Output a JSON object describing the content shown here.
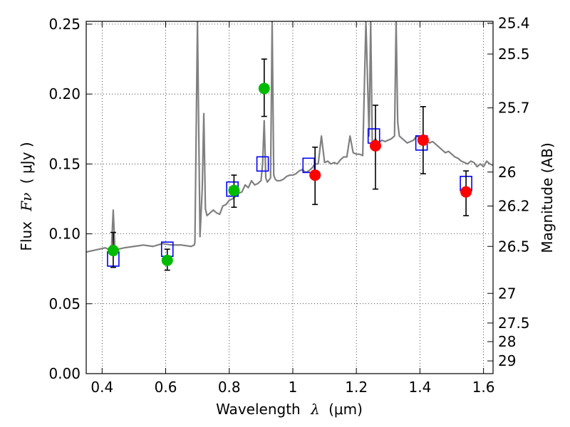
{
  "chart_data": {
    "type": "scatter",
    "title": "",
    "xlabel": "Wavelength",
    "xlabel_symbol": "λ",
    "xlabel_unit": "(μm)",
    "ylabel": "Flux",
    "ylabel_symbol": "Fν",
    "ylabel_unit": "( μJy )",
    "right_ylabel": "Magnitude (AB)",
    "xlim": [
      0.35,
      1.63
    ],
    "ylim": [
      0.0,
      0.252
    ],
    "grid": true,
    "x_ticks": [
      0.4,
      0.6,
      0.8,
      1.0,
      1.2,
      1.4,
      1.6
    ],
    "x_tick_labels": [
      "0.4",
      "0.6",
      "0.8",
      "1",
      "1.2",
      "1.4",
      "1.6"
    ],
    "y_ticks": [
      0.0,
      0.05,
      0.1,
      0.15,
      0.2,
      0.25
    ],
    "y_tick_labels": [
      "0.00",
      "0.05",
      "0.10",
      "0.15",
      "0.20",
      "0.25"
    ],
    "right_ticks": [
      {
        "label": "25.4",
        "flux": 0.2507
      },
      {
        "label": "25.5",
        "flux": 0.2286
      },
      {
        "label": "25.7",
        "flux": 0.1901
      },
      {
        "label": "26",
        "flux": 0.1442
      },
      {
        "label": "26.2",
        "flux": 0.1199
      },
      {
        "label": "26.5",
        "flux": 0.091
      },
      {
        "label": "27",
        "flux": 0.0574
      },
      {
        "label": "27.5",
        "flux": 0.0362
      },
      {
        "label": "28",
        "flux": 0.0229
      },
      {
        "label": "29",
        "flux": 0.0091
      }
    ],
    "series": [
      {
        "name": "model spectrum",
        "kind": "line",
        "color": "#808080",
        "x": [
          0.35,
          0.37,
          0.39,
          0.41,
          0.42,
          0.43,
          0.435,
          0.44,
          0.45,
          0.47,
          0.5,
          0.53,
          0.56,
          0.59,
          0.62,
          0.65,
          0.68,
          0.69,
          0.692,
          0.7,
          0.708,
          0.715,
          0.72,
          0.725,
          0.73,
          0.74,
          0.75,
          0.76,
          0.77,
          0.78,
          0.79,
          0.8,
          0.81,
          0.82,
          0.83,
          0.84,
          0.85,
          0.86,
          0.87,
          0.88,
          0.89,
          0.9,
          0.905,
          0.91,
          0.915,
          0.92,
          0.93,
          0.935,
          0.94,
          0.945,
          0.95,
          0.96,
          0.97,
          0.98,
          0.99,
          1.0,
          1.01,
          1.02,
          1.03,
          1.04,
          1.05,
          1.06,
          1.07,
          1.08,
          1.09,
          1.1,
          1.11,
          1.12,
          1.13,
          1.14,
          1.15,
          1.16,
          1.17,
          1.18,
          1.19,
          1.2,
          1.21,
          1.22,
          1.23,
          1.24,
          1.245,
          1.25,
          1.26,
          1.27,
          1.28,
          1.29,
          1.3,
          1.31,
          1.32,
          1.325,
          1.33,
          1.335,
          1.34,
          1.35,
          1.36,
          1.37,
          1.38,
          1.39,
          1.4,
          1.41,
          1.42,
          1.43,
          1.44,
          1.45,
          1.46,
          1.47,
          1.48,
          1.49,
          1.5,
          1.51,
          1.52,
          1.53,
          1.54,
          1.55,
          1.56,
          1.57,
          1.58,
          1.59,
          1.6,
          1.61,
          1.62,
          1.63
        ],
        "y": [
          0.087,
          0.088,
          0.089,
          0.09,
          0.089,
          0.092,
          0.117,
          0.091,
          0.089,
          0.09,
          0.091,
          0.092,
          0.091,
          0.093,
          0.092,
          0.092,
          0.091,
          0.092,
          0.094,
          0.252,
          0.098,
          0.132,
          0.186,
          0.118,
          0.113,
          0.115,
          0.117,
          0.115,
          0.114,
          0.12,
          0.121,
          0.124,
          0.125,
          0.127,
          0.129,
          0.13,
          0.135,
          0.133,
          0.138,
          0.135,
          0.136,
          0.138,
          0.15,
          0.181,
          0.14,
          0.137,
          0.14,
          0.252,
          0.142,
          0.139,
          0.138,
          0.138,
          0.139,
          0.141,
          0.142,
          0.142,
          0.143,
          0.145,
          0.146,
          0.144,
          0.145,
          0.147,
          0.15,
          0.15,
          0.17,
          0.151,
          0.152,
          0.15,
          0.151,
          0.15,
          0.153,
          0.155,
          0.155,
          0.17,
          0.158,
          0.157,
          0.157,
          0.156,
          0.252,
          0.17,
          0.252,
          0.165,
          0.168,
          0.165,
          0.167,
          0.166,
          0.167,
          0.168,
          0.17,
          0.252,
          0.18,
          0.17,
          0.169,
          0.167,
          0.165,
          0.166,
          0.167,
          0.17,
          0.168,
          0.169,
          0.167,
          0.165,
          0.166,
          0.164,
          0.162,
          0.16,
          0.158,
          0.159,
          0.157,
          0.155,
          0.154,
          0.152,
          0.151,
          0.15,
          0.152,
          0.151,
          0.148,
          0.15,
          0.148,
          0.152,
          0.15,
          0.149
        ]
      },
      {
        "name": "model photometry",
        "kind": "open-square",
        "color": "#0000ff",
        "x": [
          0.435,
          0.605,
          0.81,
          0.905,
          1.05,
          1.255,
          1.405,
          1.545
        ],
        "y": [
          0.082,
          0.089,
          0.132,
          0.15,
          0.149,
          0.17,
          0.165,
          0.136
        ]
      },
      {
        "name": "observed photometry (green)",
        "kind": "filled-circle",
        "color": "#00bb00",
        "x": [
          0.435,
          0.605,
          0.815,
          0.91
        ],
        "y": [
          0.088,
          0.081,
          0.131,
          0.204
        ],
        "yerr_low": [
          0.076,
          0.074,
          0.119,
          0.184
        ],
        "yerr_high": [
          0.101,
          0.089,
          0.142,
          0.225
        ]
      },
      {
        "name": "observed photometry (red)",
        "kind": "filled-circle",
        "color": "#ff0000",
        "x": [
          1.07,
          1.26,
          1.41,
          1.545
        ],
        "y": [
          0.142,
          0.163,
          0.167,
          0.13
        ],
        "yerr_low": [
          0.121,
          0.132,
          0.143,
          0.113
        ],
        "yerr_high": [
          0.162,
          0.192,
          0.191,
          0.145
        ]
      }
    ]
  }
}
